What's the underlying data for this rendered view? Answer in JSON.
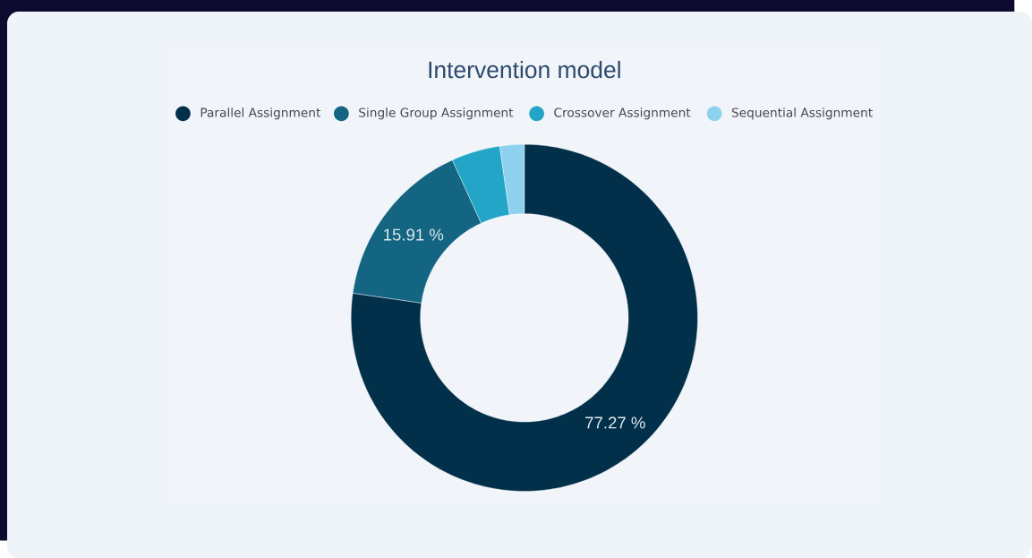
{
  "chart_data": {
    "type": "donut",
    "title": "Intervention model",
    "categories": [
      "Parallel Assignment",
      "Single Group Assignment",
      "Crossover Assignment",
      "Sequential Assignment"
    ],
    "values": [
      77.27,
      15.91,
      4.55,
      2.27
    ],
    "colors": [
      "#02304a",
      "#136582",
      "#22a5c7",
      "#8ed1ef"
    ],
    "value_labels": [
      "77.27 %",
      "15.91 %",
      null,
      null
    ],
    "legend": "top"
  }
}
